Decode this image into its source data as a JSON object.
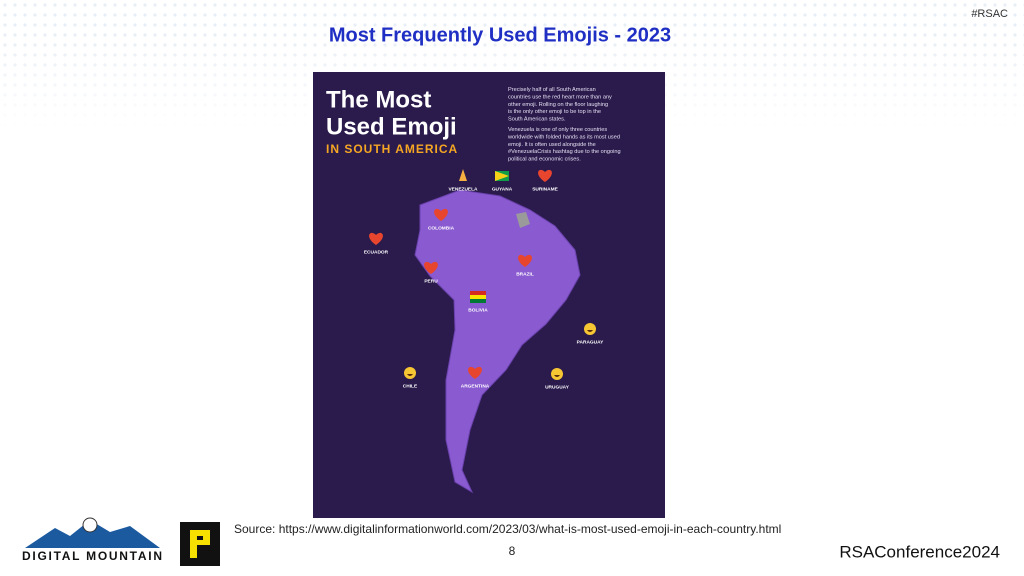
{
  "tag": "#RSAC",
  "title": "Most Frequently Used Emojis - 2023",
  "infographic": {
    "heading_line1": "The Most",
    "heading_line2": "Used Emoji",
    "subheading": "IN SOUTH AMERICA",
    "paragraphs": [
      "Precisely half of all South American countries use the red heart more than any other emoji. Rolling on the floor laughing is the only other emoji to be top in the South American states.",
      "Venezuela is one of only three countries worldwide with folded hands as its most used emoji. It is often used alongside the #VenezuelaCrisis hashtag due to the ongoing political and economic crises."
    ],
    "countries": [
      "VENEZUELA",
      "GUYANA",
      "SURINAME",
      "COLOMBIA",
      "ECUADOR",
      "PERU",
      "BRAZIL",
      "BOLIVIA",
      "PARAGUAY",
      "CHILE",
      "ARGENTINA",
      "URUGUAY"
    ]
  },
  "source": "Source: https://www.digitalinformationworld.com/2023/03/what-is-most-used-emoji-in-each-country.html",
  "page_number": "8",
  "logos": {
    "left": "DIGITAL MOUNTAIN",
    "right": "RSAConference2024"
  }
}
